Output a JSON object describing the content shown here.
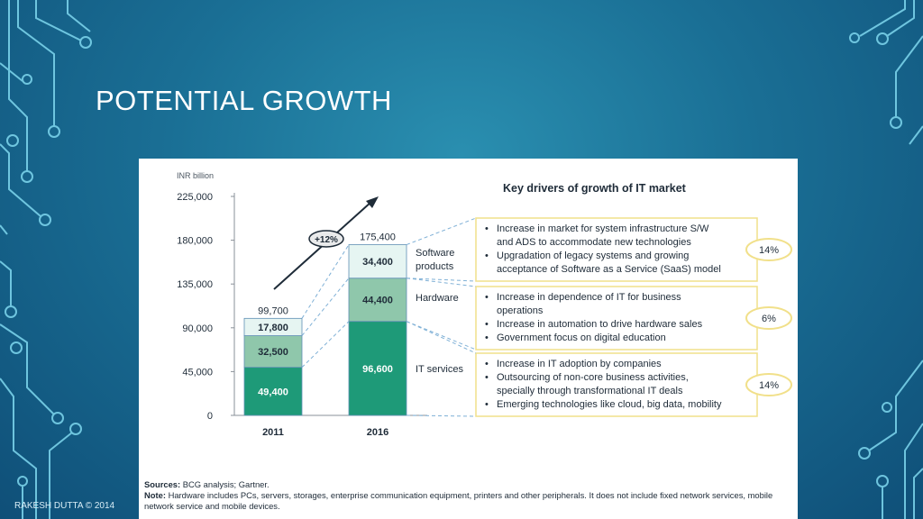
{
  "slide": {
    "title": "POTENTIAL GROWTH",
    "footer": "RAKESH DUTTA © 2014"
  },
  "chart_data": {
    "type": "bar",
    "stacked": true,
    "unit_label": "INR billion",
    "categories": [
      "2011",
      "2016"
    ],
    "totals": [
      99700,
      175400
    ],
    "total_labels": [
      "99,700",
      "175,400"
    ],
    "series": [
      {
        "name": "IT services",
        "values": [
          49400,
          96600
        ],
        "labels": [
          "49,400",
          "96,600"
        ],
        "color": "#1e9a78"
      },
      {
        "name": "Hardware",
        "values": [
          32500,
          44400
        ],
        "labels": [
          "32,500",
          "44,400"
        ],
        "color": "#8fc7ab"
      },
      {
        "name": "Software products",
        "values": [
          17800,
          34400
        ],
        "labels": [
          "17,800",
          "34,400"
        ],
        "color": "#e6f5f2"
      }
    ],
    "ylim": [
      0,
      225000
    ],
    "yticks": [
      0,
      45000,
      90000,
      135000,
      180000,
      225000
    ],
    "ytick_labels": [
      "0",
      "45,000",
      "90,000",
      "135,000",
      "180,000",
      "225,000"
    ],
    "growth_label": "+12%",
    "segment_labels": [
      "Software products",
      "Hardware",
      "IT services"
    ],
    "drivers_title": "Key drivers of growth of IT market",
    "drivers": [
      {
        "name": "Software products",
        "bullets": [
          "Increase in market for system infrastructure S/W",
          "and ADS to accommodate new technologies",
          "Upgradation of legacy systems and growing",
          "acceptance of Software as a Service (SaaS) model"
        ],
        "bullet_starts": [
          true,
          false,
          true,
          false
        ],
        "growth": "14%"
      },
      {
        "name": "Hardware",
        "bullets": [
          "Increase in dependence of IT for business",
          "operations",
          "Increase in automation to drive hardware sales",
          "Government focus on digital education"
        ],
        "bullet_starts": [
          true,
          false,
          true,
          true
        ],
        "growth": "6%"
      },
      {
        "name": "IT services",
        "bullets": [
          "Increase in IT adoption by companies",
          "Outsourcing of non-core business activities,",
          "specially through transformational IT deals",
          "Emerging technologies like cloud, big data, mobility"
        ],
        "bullet_starts": [
          true,
          true,
          false,
          true
        ],
        "growth": "14%"
      }
    ]
  },
  "sources": {
    "sources_label": "Sources:",
    "sources_text": " BCG analysis; Gartner.",
    "note_label": "Note:",
    "note_text": " Hardware includes PCs, servers, storages, enterprise communication equipment, printers and other peripherals. It does not include fixed network services, mobile network service and mobile devices."
  },
  "colors": {
    "accent_text": "#1e2b38",
    "driver_box_border": "#f1e08a",
    "connector": "#7fb0d6"
  }
}
